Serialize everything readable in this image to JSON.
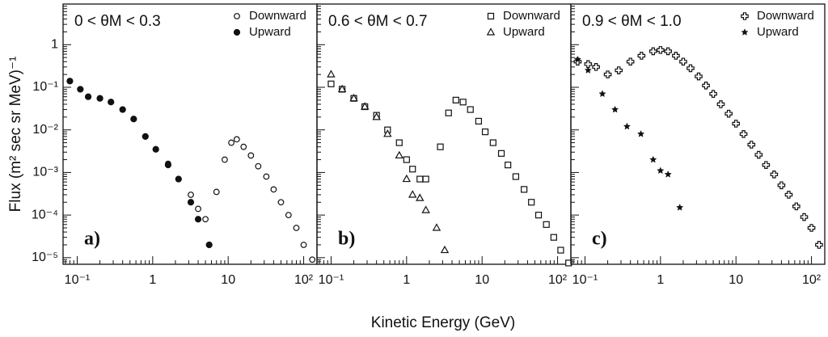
{
  "xlabel": "Kinetic Energy (GeV)",
  "ylabel": "Flux (m² sec sr MeV)⁻¹",
  "chart_data": [
    {
      "type": "scatter",
      "title": "0 < θM < 0.3",
      "panel_label": "a)",
      "log_x": true,
      "log_y": true,
      "xlim": [
        0.065,
        150
      ],
      "ylim": [
        7e-06,
        9
      ],
      "xticks": [
        {
          "value": 0.1,
          "label": "10⁻¹"
        },
        1,
        10,
        {
          "value": 100,
          "label": "10²"
        }
      ],
      "yticks": [
        {
          "value": 1e-05,
          "label": "10⁻⁵"
        },
        {
          "value": 0.0001,
          "label": "10⁻⁴"
        },
        {
          "value": 0.001,
          "label": "10⁻³"
        },
        {
          "value": 0.01,
          "label": "10⁻²"
        },
        {
          "value": 0.1,
          "label": "10⁻¹"
        },
        1
      ],
      "series": [
        {
          "name": "Downward",
          "color": "#111",
          "marker": "open-circle",
          "x": [
            0.11,
            0.14,
            0.2,
            0.28,
            0.4,
            0.56,
            0.8,
            1.1,
            1.6,
            2.2,
            3.2,
            4,
            5,
            7,
            9,
            11,
            13,
            16,
            20,
            25,
            32,
            40,
            50,
            63,
            80,
            100,
            130
          ],
          "values": [
            0.09,
            0.06,
            0.055,
            0.045,
            0.03,
            0.018,
            0.007,
            0.0035,
            0.0016,
            0.0007,
            0.0003,
            0.00014,
            8e-05,
            0.00035,
            0.002,
            0.005,
            0.006,
            0.004,
            0.0025,
            0.0014,
            0.0008,
            0.0004,
            0.0002,
            0.0001,
            5e-05,
            2e-05,
            9e-06
          ]
        },
        {
          "name": "Upward",
          "color": "#111",
          "marker": "filled-circle",
          "x": [
            0.08,
            0.11,
            0.14,
            0.2,
            0.28,
            0.4,
            0.56,
            0.8,
            1.1,
            1.6,
            2.2,
            3.2,
            4,
            5.6
          ],
          "values": [
            0.14,
            0.09,
            0.06,
            0.055,
            0.045,
            0.03,
            0.018,
            0.007,
            0.0035,
            0.0015,
            0.0007,
            0.0002,
            8e-05,
            2e-05
          ]
        }
      ]
    },
    {
      "type": "scatter",
      "title": "0.6 < θM < 0.7",
      "panel_label": "b)",
      "log_x": true,
      "log_y": true,
      "xlim": [
        0.065,
        150
      ],
      "ylim": [
        7e-06,
        9
      ],
      "xticks": [
        {
          "value": 0.1,
          "label": "10⁻¹"
        },
        1,
        10,
        {
          "value": 100,
          "label": "10²"
        }
      ],
      "yticks": [
        1e-05,
        0.0001,
        0.001,
        0.01,
        0.1,
        1
      ],
      "series": [
        {
          "name": "Downward",
          "color": "#111",
          "marker": "open-square",
          "x": [
            0.1,
            0.14,
            0.2,
            0.28,
            0.4,
            0.56,
            0.8,
            1.0,
            1.2,
            1.5,
            1.8,
            2.8,
            3.6,
            4.5,
            5.6,
            7,
            9,
            11,
            14,
            18,
            22,
            28,
            36,
            45,
            56,
            71,
            89,
            110,
            140
          ],
          "values": [
            0.12,
            0.09,
            0.055,
            0.035,
            0.022,
            0.01,
            0.005,
            0.002,
            0.0012,
            0.0007,
            0.0007,
            0.004,
            0.025,
            0.05,
            0.045,
            0.03,
            0.016,
            0.009,
            0.005,
            0.0028,
            0.0015,
            0.0008,
            0.0004,
            0.0002,
            0.0001,
            6e-05,
            3e-05,
            1.5e-05,
            7.5e-06
          ]
        },
        {
          "name": "Upward",
          "color": "#111",
          "marker": "open-triangle",
          "x": [
            0.1,
            0.14,
            0.2,
            0.28,
            0.4,
            0.56,
            0.8,
            1.0,
            1.2,
            1.5,
            1.8,
            2.5,
            3.2
          ],
          "values": [
            0.2,
            0.09,
            0.055,
            0.035,
            0.02,
            0.008,
            0.0025,
            0.0007,
            0.0003,
            0.00025,
            0.00013,
            5e-05,
            1.5e-05
          ]
        }
      ]
    },
    {
      "type": "scatter",
      "title": "0.9 < θM < 1.0",
      "panel_label": "c)",
      "log_x": true,
      "log_y": true,
      "xlim": [
        0.065,
        150
      ],
      "ylim": [
        7e-06,
        9
      ],
      "xticks": [
        {
          "value": 0.1,
          "label": "10⁻¹"
        },
        1,
        10,
        {
          "value": 100,
          "label": "10²"
        }
      ],
      "yticks": [
        1e-05,
        0.0001,
        0.001,
        0.01,
        0.1,
        1
      ],
      "series": [
        {
          "name": "Downward",
          "color": "#111",
          "marker": "open-cross",
          "x": [
            0.08,
            0.11,
            0.14,
            0.2,
            0.28,
            0.4,
            0.56,
            0.8,
            1.0,
            1.26,
            1.6,
            2,
            2.5,
            3.2,
            4,
            5,
            6.3,
            8,
            10,
            12.6,
            16,
            20,
            25,
            32,
            40,
            50,
            63,
            80,
            100,
            126
          ],
          "values": [
            0.4,
            0.35,
            0.3,
            0.2,
            0.25,
            0.4,
            0.55,
            0.7,
            0.75,
            0.7,
            0.55,
            0.4,
            0.28,
            0.18,
            0.11,
            0.07,
            0.04,
            0.024,
            0.014,
            0.008,
            0.0045,
            0.0026,
            0.0015,
            0.0009,
            0.0005,
            0.0003,
            0.00016,
            9e-05,
            5e-05,
            2e-05
          ]
        },
        {
          "name": "Upward",
          "color": "#111",
          "marker": "filled-star",
          "x": [
            0.08,
            0.11,
            0.17,
            0.25,
            0.36,
            0.55,
            0.8,
            1.0,
            1.26,
            1.8
          ],
          "values": [
            0.45,
            0.25,
            0.07,
            0.03,
            0.012,
            0.008,
            0.002,
            0.0011,
            0.0009,
            0.00015
          ]
        }
      ]
    }
  ]
}
